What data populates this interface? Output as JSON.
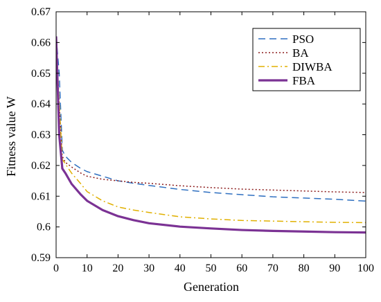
{
  "chart_data": {
    "type": "line",
    "title": "",
    "xlabel": "Generation",
    "ylabel": "Fitness value W",
    "xlim": [
      0,
      100
    ],
    "ylim": [
      0.59,
      0.67
    ],
    "xticks": [
      0,
      10,
      20,
      30,
      40,
      50,
      60,
      70,
      80,
      90,
      100
    ],
    "yticks": [
      0.59,
      0.6,
      0.61,
      0.62,
      0.63,
      0.64,
      0.65,
      0.66,
      0.67
    ],
    "ytick_labels": [
      "0.59",
      "0.6",
      "0.61",
      "0.62",
      "0.63",
      "0.64",
      "0.65",
      "0.66",
      "0.67"
    ],
    "grid": false,
    "legend_position": "top-right",
    "series": [
      {
        "name": "PSO",
        "color": "#2e6fc0",
        "style": "dashed",
        "x": [
          0,
          1,
          2,
          3,
          5,
          8,
          10,
          15,
          20,
          25,
          30,
          40,
          50,
          60,
          70,
          80,
          90,
          100
        ],
        "y": [
          0.662,
          0.65,
          0.625,
          0.623,
          0.621,
          0.619,
          0.618,
          0.6165,
          0.615,
          0.6142,
          0.6135,
          0.6122,
          0.6112,
          0.6105,
          0.6098,
          0.6094,
          0.609,
          0.6084
        ]
      },
      {
        "name": "BA",
        "color": "#8b1a1a",
        "style": "dotted",
        "x": [
          0,
          1,
          2,
          3,
          5,
          8,
          10,
          15,
          20,
          25,
          30,
          40,
          50,
          60,
          70,
          80,
          90,
          100
        ],
        "y": [
          0.661,
          0.64,
          0.623,
          0.621,
          0.6195,
          0.6175,
          0.6165,
          0.6155,
          0.615,
          0.6145,
          0.6142,
          0.6134,
          0.6128,
          0.6123,
          0.612,
          0.6117,
          0.6114,
          0.6112
        ]
      },
      {
        "name": "DIWBA",
        "color": "#e0b000",
        "style": "dashdot",
        "x": [
          0,
          1,
          2,
          3,
          5,
          8,
          10,
          15,
          20,
          25,
          30,
          40,
          50,
          60,
          70,
          80,
          90,
          100
        ],
        "y": [
          0.661,
          0.64,
          0.622,
          0.6205,
          0.6175,
          0.614,
          0.6115,
          0.6085,
          0.6065,
          0.6055,
          0.6047,
          0.6033,
          0.6026,
          0.6021,
          0.6019,
          0.6017,
          0.6015,
          0.6014
        ]
      },
      {
        "name": "FBA",
        "color": "#7b3294",
        "style": "solid",
        "x": [
          0,
          1,
          2,
          3,
          5,
          8,
          10,
          15,
          20,
          25,
          30,
          40,
          50,
          60,
          70,
          80,
          90,
          100
        ],
        "y": [
          0.662,
          0.63,
          0.619,
          0.6175,
          0.614,
          0.6105,
          0.6085,
          0.6055,
          0.6035,
          0.6022,
          0.6012,
          0.6001,
          0.5995,
          0.599,
          0.5987,
          0.5985,
          0.5983,
          0.5982
        ]
      }
    ]
  }
}
